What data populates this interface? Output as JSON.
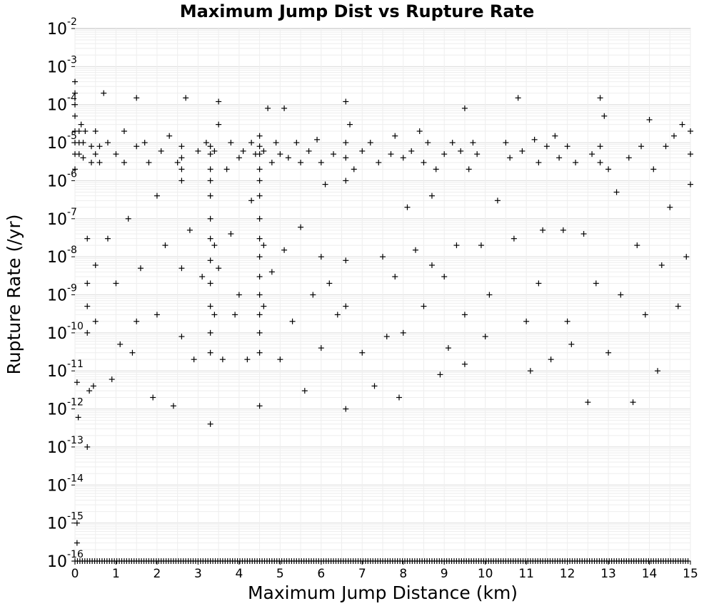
{
  "chart_data": {
    "type": "scatter",
    "title": "Maximum Jump Dist vs Rupture Rate",
    "xlabel": "Maximum Jump Distance (km)",
    "ylabel": "Rupture Rate (/yr)",
    "xlim": [
      0,
      15
    ],
    "ylim": [
      1e-16,
      0.01
    ],
    "yscale": "log",
    "grid": true,
    "legend": "none",
    "marker": "plus",
    "marker_color": "#000000",
    "x_tick_labels": [
      "0",
      "1",
      "2",
      "3",
      "4",
      "5",
      "6",
      "7",
      "8",
      "9",
      "10",
      "11",
      "12",
      "13",
      "14",
      "15"
    ],
    "y_tick_labels": [
      {
        "base": "10",
        "exp": "-2"
      },
      {
        "base": "10",
        "exp": "-3"
      },
      {
        "base": "10",
        "exp": "-4"
      },
      {
        "base": "10",
        "exp": "-5"
      },
      {
        "base": "10",
        "exp": "-6"
      },
      {
        "base": "10",
        "exp": "-7"
      },
      {
        "base": "10",
        "exp": "-8"
      },
      {
        "base": "10",
        "exp": "-9"
      },
      {
        "base": "10",
        "exp": "-10"
      },
      {
        "base": "10",
        "exp": "-11"
      },
      {
        "base": "10",
        "exp": "-12"
      },
      {
        "base": "10",
        "exp": "-13"
      },
      {
        "base": "10",
        "exp": "-14"
      },
      {
        "base": "10",
        "exp": "-15"
      },
      {
        "base": "10",
        "exp": "-16"
      }
    ],
    "points": [
      [
        0.0,
        0.0004
      ],
      [
        0.0,
        0.0002
      ],
      [
        0.0,
        0.0001
      ],
      [
        0.0,
        5e-05
      ],
      [
        0.0,
        2e-05
      ],
      [
        0.0,
        1e-05
      ],
      [
        0.0,
        5e-06
      ],
      [
        0.0,
        2e-06
      ],
      [
        0.05,
        1e-15
      ],
      [
        0.05,
        3e-16
      ],
      [
        0.05,
        5e-12
      ],
      [
        0.08,
        6e-13
      ],
      [
        0.1,
        2e-05
      ],
      [
        0.1,
        1e-05
      ],
      [
        0.1,
        5e-06
      ],
      [
        0.15,
        3e-05
      ],
      [
        0.2,
        1e-05
      ],
      [
        0.2,
        4e-06
      ],
      [
        0.25,
        2e-05
      ],
      [
        0.3,
        1e-13
      ],
      [
        0.3,
        3e-08
      ],
      [
        0.3,
        2e-09
      ],
      [
        0.3,
        5e-10
      ],
      [
        0.3,
        1e-10
      ],
      [
        0.35,
        3e-12
      ],
      [
        0.4,
        8e-06
      ],
      [
        0.4,
        3e-06
      ],
      [
        0.45,
        4e-12
      ],
      [
        0.5,
        2e-05
      ],
      [
        0.5,
        5e-06
      ],
      [
        0.5,
        6e-09
      ],
      [
        0.5,
        2e-10
      ],
      [
        0.6,
        8e-06
      ],
      [
        0.6,
        3e-06
      ],
      [
        0.7,
        0.0002
      ],
      [
        0.8,
        1e-05
      ],
      [
        0.8,
        3e-08
      ],
      [
        0.9,
        6e-12
      ],
      [
        1.0,
        5e-06
      ],
      [
        1.0,
        2e-09
      ],
      [
        1.1,
        5e-11
      ],
      [
        1.2,
        2e-05
      ],
      [
        1.2,
        3e-06
      ],
      [
        1.3,
        1e-07
      ],
      [
        1.4,
        3e-11
      ],
      [
        1.5,
        0.00015
      ],
      [
        1.5,
        8e-06
      ],
      [
        1.5,
        2e-10
      ],
      [
        1.6,
        5e-09
      ],
      [
        1.7,
        1e-05
      ],
      [
        1.8,
        3e-06
      ],
      [
        1.9,
        2e-12
      ],
      [
        2.0,
        4e-07
      ],
      [
        2.0,
        3e-10
      ],
      [
        2.1,
        6e-06
      ],
      [
        2.2,
        2e-08
      ],
      [
        2.3,
        1.5e-05
      ],
      [
        2.4,
        1.2e-12
      ],
      [
        2.5,
        3e-06
      ],
      [
        2.6,
        8e-06
      ],
      [
        2.6,
        4e-06
      ],
      [
        2.6,
        2e-06
      ],
      [
        2.6,
        1e-06
      ],
      [
        2.6,
        5e-09
      ],
      [
        2.6,
        8e-11
      ],
      [
        2.7,
        0.00015
      ],
      [
        2.8,
        5e-08
      ],
      [
        2.9,
        2e-11
      ],
      [
        3.0,
        6e-06
      ],
      [
        3.1,
        3e-09
      ],
      [
        3.2,
        1e-05
      ],
      [
        3.3,
        8e-06
      ],
      [
        3.3,
        5e-06
      ],
      [
        3.3,
        2e-06
      ],
      [
        3.3,
        1e-06
      ],
      [
        3.3,
        4e-07
      ],
      [
        3.3,
        1e-07
      ],
      [
        3.3,
        3e-08
      ],
      [
        3.3,
        8e-09
      ],
      [
        3.3,
        2e-09
      ],
      [
        3.3,
        5e-10
      ],
      [
        3.3,
        1e-10
      ],
      [
        3.3,
        3e-11
      ],
      [
        3.3,
        4e-13
      ],
      [
        3.4,
        6e-06
      ],
      [
        3.4,
        2e-08
      ],
      [
        3.4,
        3e-10
      ],
      [
        3.5,
        0.00012
      ],
      [
        3.5,
        3e-05
      ],
      [
        3.5,
        5e-09
      ],
      [
        3.6,
        2e-11
      ],
      [
        3.7,
        2e-06
      ],
      [
        3.8,
        1e-05
      ],
      [
        3.8,
        4e-08
      ],
      [
        3.9,
        3e-10
      ],
      [
        4.0,
        4e-06
      ],
      [
        4.0,
        1e-09
      ],
      [
        4.1,
        6e-06
      ],
      [
        4.2,
        2e-11
      ],
      [
        4.3,
        1e-05
      ],
      [
        4.3,
        3e-07
      ],
      [
        4.4,
        5e-06
      ],
      [
        4.5,
        1.5e-05
      ],
      [
        4.5,
        8e-06
      ],
      [
        4.5,
        5e-06
      ],
      [
        4.5,
        2e-06
      ],
      [
        4.5,
        1e-06
      ],
      [
        4.5,
        4e-07
      ],
      [
        4.5,
        1e-07
      ],
      [
        4.5,
        3e-08
      ],
      [
        4.5,
        1e-08
      ],
      [
        4.5,
        3e-09
      ],
      [
        4.5,
        1e-09
      ],
      [
        4.5,
        3e-10
      ],
      [
        4.5,
        1e-10
      ],
      [
        4.5,
        3e-11
      ],
      [
        4.5,
        1.2e-12
      ],
      [
        4.6,
        6e-06
      ],
      [
        4.6,
        2e-08
      ],
      [
        4.6,
        5e-10
      ],
      [
        4.7,
        8e-05
      ],
      [
        4.8,
        3e-06
      ],
      [
        4.8,
        4e-09
      ],
      [
        4.9,
        1e-05
      ],
      [
        5.0,
        5e-06
      ],
      [
        5.0,
        2e-11
      ],
      [
        5.1,
        8e-05
      ],
      [
        5.1,
        1.5e-08
      ],
      [
        5.2,
        4e-06
      ],
      [
        5.3,
        2e-10
      ],
      [
        5.4,
        1e-05
      ],
      [
        5.5,
        3e-06
      ],
      [
        5.5,
        6e-08
      ],
      [
        5.6,
        3e-12
      ],
      [
        5.7,
        6e-06
      ],
      [
        5.8,
        1e-09
      ],
      [
        5.9,
        1.2e-05
      ],
      [
        6.0,
        3e-06
      ],
      [
        6.0,
        1e-08
      ],
      [
        6.0,
        4e-11
      ],
      [
        6.1,
        8e-07
      ],
      [
        6.2,
        2e-09
      ],
      [
        6.3,
        5e-06
      ],
      [
        6.4,
        3e-10
      ],
      [
        6.6,
        0.00012
      ],
      [
        6.6,
        1e-05
      ],
      [
        6.6,
        4e-06
      ],
      [
        6.6,
        1e-06
      ],
      [
        6.6,
        8e-09
      ],
      [
        6.6,
        5e-10
      ],
      [
        6.6,
        1e-12
      ],
      [
        6.7,
        3e-05
      ],
      [
        6.8,
        2e-06
      ],
      [
        7.0,
        6e-06
      ],
      [
        7.0,
        3e-11
      ],
      [
        7.2,
        1e-05
      ],
      [
        7.3,
        4e-12
      ],
      [
        7.4,
        3e-06
      ],
      [
        7.5,
        1e-08
      ],
      [
        7.6,
        8e-11
      ],
      [
        7.7,
        5e-06
      ],
      [
        7.8,
        1.5e-05
      ],
      [
        7.8,
        3e-09
      ],
      [
        7.9,
        2e-12
      ],
      [
        8.0,
        4e-06
      ],
      [
        8.0,
        1e-10
      ],
      [
        8.1,
        2e-07
      ],
      [
        8.2,
        6e-06
      ],
      [
        8.3,
        1.5e-08
      ],
      [
        8.4,
        2e-05
      ],
      [
        8.5,
        3e-06
      ],
      [
        8.5,
        5e-10
      ],
      [
        8.6,
        1e-05
      ],
      [
        8.7,
        4e-07
      ],
      [
        8.7,
        6e-09
      ],
      [
        8.8,
        2e-06
      ],
      [
        8.9,
        8e-12
      ],
      [
        9.0,
        5e-06
      ],
      [
        9.0,
        3e-09
      ],
      [
        9.1,
        4e-11
      ],
      [
        9.2,
        1e-05
      ],
      [
        9.3,
        2e-08
      ],
      [
        9.4,
        6e-06
      ],
      [
        9.5,
        8e-05
      ],
      [
        9.5,
        3e-10
      ],
      [
        9.5,
        1.5e-11
      ],
      [
        9.6,
        2e-06
      ],
      [
        9.7,
        1e-05
      ],
      [
        9.8,
        5e-06
      ],
      [
        9.9,
        2e-08
      ],
      [
        10.0,
        8e-11
      ],
      [
        10.1,
        1e-09
      ],
      [
        10.3,
        3e-07
      ],
      [
        10.5,
        1e-05
      ],
      [
        10.6,
        4e-06
      ],
      [
        10.7,
        3e-08
      ],
      [
        10.8,
        0.00015
      ],
      [
        10.9,
        6e-06
      ],
      [
        11.0,
        2e-10
      ],
      [
        11.1,
        1e-11
      ],
      [
        11.2,
        1.2e-05
      ],
      [
        11.3,
        3e-06
      ],
      [
        11.3,
        2e-09
      ],
      [
        11.4,
        5e-08
      ],
      [
        11.5,
        8e-06
      ],
      [
        11.6,
        2e-11
      ],
      [
        11.7,
        1.5e-05
      ],
      [
        11.8,
        4e-06
      ],
      [
        11.9,
        5e-08
      ],
      [
        12.0,
        8e-06
      ],
      [
        12.0,
        2e-10
      ],
      [
        12.1,
        5e-11
      ],
      [
        12.2,
        3e-06
      ],
      [
        12.4,
        4e-08
      ],
      [
        12.5,
        1.5e-12
      ],
      [
        12.6,
        5e-06
      ],
      [
        12.7,
        2e-09
      ],
      [
        12.8,
        0.00015
      ],
      [
        12.8,
        8e-06
      ],
      [
        12.8,
        3e-06
      ],
      [
        12.9,
        5e-05
      ],
      [
        13.0,
        2e-06
      ],
      [
        13.0,
        3e-11
      ],
      [
        13.2,
        5e-07
      ],
      [
        13.3,
        1e-09
      ],
      [
        13.5,
        4e-06
      ],
      [
        13.6,
        1.5e-12
      ],
      [
        13.7,
        2e-08
      ],
      [
        13.8,
        8e-06
      ],
      [
        13.9,
        3e-10
      ],
      [
        14.0,
        4e-05
      ],
      [
        14.1,
        2e-06
      ],
      [
        14.2,
        1e-11
      ],
      [
        14.3,
        6e-09
      ],
      [
        14.4,
        8e-06
      ],
      [
        14.5,
        2e-07
      ],
      [
        14.6,
        1.5e-05
      ],
      [
        14.7,
        5e-10
      ],
      [
        14.8,
        3e-05
      ],
      [
        14.9,
        1e-08
      ],
      [
        15.0,
        2e-05
      ],
      [
        15.0,
        5e-06
      ],
      [
        15.0,
        8e-07
      ]
    ],
    "floor_value": 1e-16
  }
}
